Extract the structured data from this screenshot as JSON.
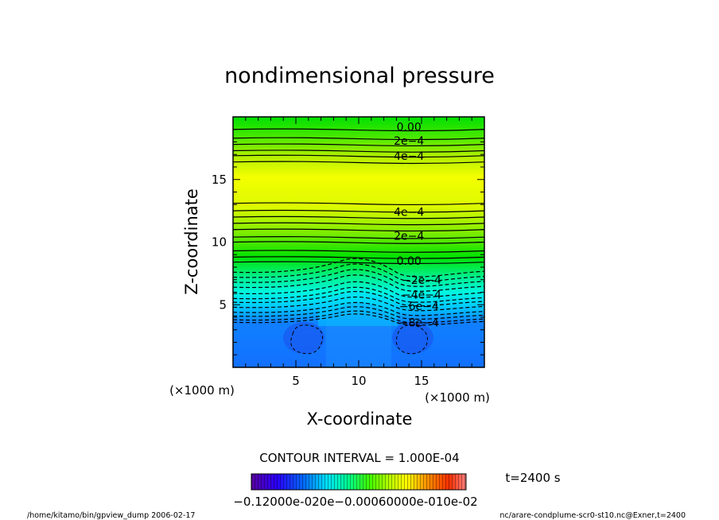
{
  "chart_data": {
    "type": "heatmap",
    "title": "nondimensional pressure",
    "xlabel": "X-coordinate",
    "ylabel": "Z-coordinate",
    "x_unit": "(×1000 m)",
    "y_unit": "(×1000 m)",
    "xlim": [
      0,
      20
    ],
    "ylim": [
      0,
      20
    ],
    "xticks": [
      5,
      10,
      15
    ],
    "yticks": [
      5,
      10,
      15
    ],
    "contour_interval_text": "CONTOUR INTERVAL = 1.000E-04",
    "time_text": "t=2400 s",
    "colorbar_labels_text": "−0.12000e-020e−0.00060000e-010e-02",
    "colorbar_range": [
      -0.0012,
      0.0012
    ],
    "contour_labels": [
      {
        "text": "0.00",
        "x": 14.0,
        "z": 19.2
      },
      {
        "text": "2e−4",
        "x": 14.0,
        "z": 18.1
      },
      {
        "text": "4e−4",
        "x": 14.0,
        "z": 16.9
      },
      {
        "text": "4e−4",
        "x": 14.0,
        "z": 12.4
      },
      {
        "text": "2e−4",
        "x": 14.0,
        "z": 10.5
      },
      {
        "text": "0.00",
        "x": 14.0,
        "z": 8.5
      },
      {
        "text": "−2e−4",
        "x": 15.0,
        "z": 7.0
      },
      {
        "text": "−4e−4",
        "x": 15.0,
        "z": 5.8
      },
      {
        "text": "−6e−4",
        "x": 14.8,
        "z": 4.9
      },
      {
        "text": "−8e−4",
        "x": 14.8,
        "z": 3.6
      }
    ],
    "solid_contours_z": [
      19.0,
      18.3,
      17.8,
      17.3,
      16.9,
      16.4,
      13.1,
      12.5,
      12.0,
      11.5,
      11.0,
      10.4,
      10.0,
      9.3,
      8.8,
      8.4
    ],
    "dashed_contours_z": [
      7.6,
      7.2,
      6.8,
      6.4,
      5.9,
      5.5,
      5.2,
      4.8,
      4.4,
      4.1,
      3.8,
      3.6
    ]
  },
  "footer": {
    "left": "/home/kitamo/bin/gpview_dump  2006-02-17",
    "right": "nc/arare-condplume-scr0-st10.nc@Exner,t=2400"
  }
}
